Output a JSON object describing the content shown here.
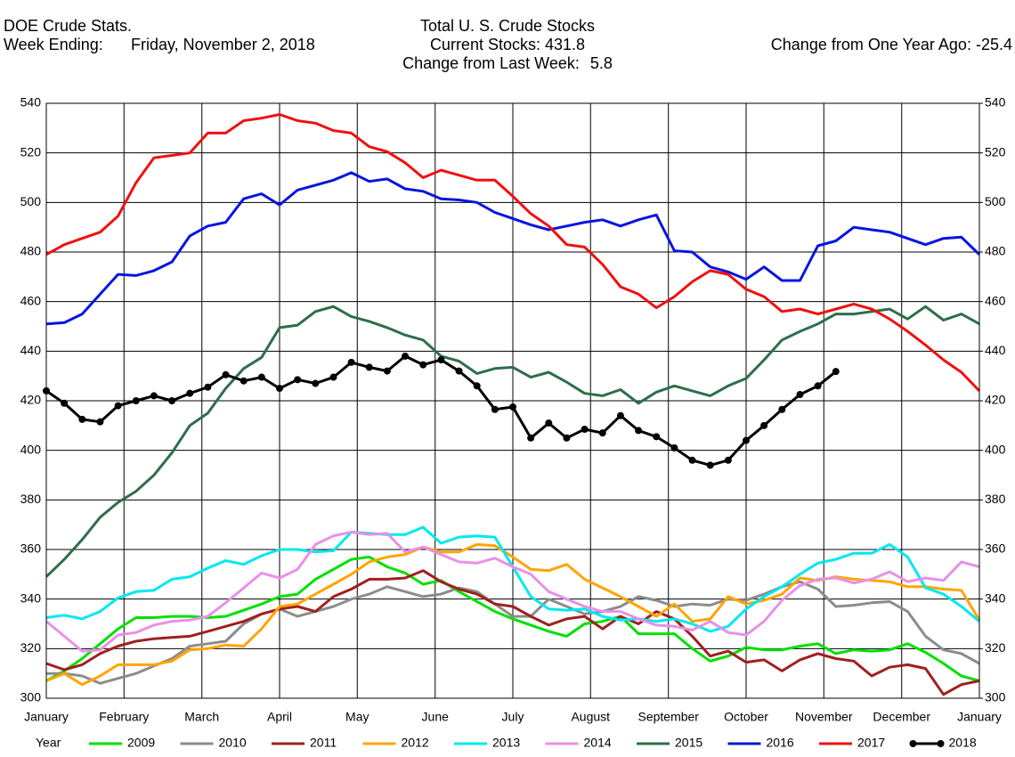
{
  "header": {
    "left_title": "DOE Crude Stats.",
    "week_label": "Week Ending:",
    "week_date": "Friday, November 2, 2018",
    "center_title": "Total U. S. Crude Stocks",
    "current": {
      "label": "Current Stocks:",
      "value": 431.8
    },
    "weekly_change": {
      "label": "Change from Last Week:",
      "value": 5.8
    },
    "yearly_change": {
      "label": "Change from One Year Ago:",
      "value": -25.4
    }
  },
  "chart_data": {
    "type": "line",
    "legend_title": "Year",
    "legend": "bottom",
    "grid": true,
    "x": [
      0,
      1,
      2,
      3,
      4,
      5,
      6,
      7,
      8,
      9,
      10,
      11,
      12,
      13,
      14,
      15,
      16,
      17,
      18,
      19,
      20,
      21,
      22,
      23,
      24,
      25,
      26,
      27,
      28,
      29,
      30,
      31,
      32,
      33,
      34,
      35,
      36,
      37,
      38,
      39,
      40,
      41,
      42,
      43,
      44,
      45,
      46,
      47,
      48,
      49,
      50,
      51,
      52
    ],
    "xlim": [
      0,
      52
    ],
    "xticks": [
      {
        "value": 0,
        "label": "January"
      },
      {
        "value": 4.33,
        "label": "February"
      },
      {
        "value": 8.67,
        "label": "March"
      },
      {
        "value": 13,
        "label": "April"
      },
      {
        "value": 17.33,
        "label": "May"
      },
      {
        "value": 21.67,
        "label": "June"
      },
      {
        "value": 26,
        "label": "July"
      },
      {
        "value": 30.33,
        "label": "August"
      },
      {
        "value": 34.67,
        "label": "September"
      },
      {
        "value": 39,
        "label": "October"
      },
      {
        "value": 43.33,
        "label": "November"
      },
      {
        "value": 47.67,
        "label": "December"
      },
      {
        "value": 52,
        "label": "January"
      }
    ],
    "ylim": [
      300,
      540
    ],
    "yticks": [
      300,
      320,
      340,
      360,
      380,
      400,
      420,
      440,
      460,
      480,
      500,
      520,
      540
    ],
    "y2lim": [
      300,
      540
    ],
    "y2ticks": [
      300,
      320,
      340,
      360,
      380,
      400,
      420,
      440,
      460,
      480,
      500,
      520,
      540
    ],
    "series": [
      {
        "name": "2009",
        "color": "#00e000",
        "values": [
          307,
          311,
          316,
          322,
          328,
          332.5,
          332.5,
          333,
          333,
          332.5,
          333,
          335.5,
          338,
          341,
          342,
          348,
          352,
          356,
          357,
          353,
          350.5,
          346,
          347.5,
          343,
          339,
          335,
          332,
          329.5,
          327,
          325,
          330,
          331,
          333,
          326,
          326,
          326,
          320,
          315,
          317,
          320.5,
          319.5,
          319.5,
          321,
          322,
          318,
          319.5,
          319,
          319.5,
          322,
          318.5,
          314,
          309,
          307
        ]
      },
      {
        "name": "2010",
        "color": "#8c8c8c",
        "values": [
          310,
          310,
          309,
          306,
          308,
          310,
          313,
          316,
          321,
          322,
          323,
          330,
          334,
          336,
          333,
          335,
          337,
          340,
          342,
          345,
          343,
          341,
          342,
          344.5,
          343,
          338,
          333,
          333,
          340,
          337,
          334,
          335,
          337,
          341,
          339.5,
          337,
          338,
          337.5,
          340,
          339.5,
          342,
          345,
          347,
          344,
          337,
          337.5,
          338.5,
          339,
          335,
          325,
          319.5,
          318,
          314
        ]
      },
      {
        "name": "2011",
        "color": "#a02020",
        "values": [
          314,
          311.5,
          313.5,
          318,
          321,
          323,
          324,
          324.5,
          325,
          327,
          329,
          331,
          334,
          336,
          337,
          335,
          341,
          344,
          348,
          348,
          348.5,
          351.5,
          347,
          344,
          342,
          338,
          337,
          333,
          329.5,
          332,
          333,
          328,
          333,
          330,
          335,
          332,
          325,
          317,
          319,
          314.5,
          315.5,
          311,
          315.5,
          318,
          316,
          315,
          309,
          312.5,
          313.5,
          312,
          301.5,
          305.5,
          307
        ]
      },
      {
        "name": "2012",
        "color": "#ffa500",
        "values": [
          307,
          310,
          305.5,
          309,
          313.5,
          313.5,
          313.5,
          315,
          319.5,
          320,
          321.5,
          321,
          328,
          337,
          338,
          342,
          346,
          350,
          355,
          357,
          358,
          361,
          359,
          359,
          362,
          361.5,
          357,
          352,
          351.5,
          354,
          348,
          344.5,
          341,
          337,
          333,
          338,
          331,
          332,
          341,
          338,
          339.5,
          342,
          348.5,
          347.5,
          349,
          348,
          347.5,
          347,
          345,
          345,
          344,
          343.5,
          331.5
        ]
      },
      {
        "name": "2013",
        "color": "#00e8f0",
        "values": [
          332.5,
          333.5,
          332,
          335,
          340.5,
          343,
          343.5,
          348,
          349,
          352.5,
          355.5,
          354,
          357.5,
          360,
          360,
          359,
          359.5,
          367,
          366.5,
          366,
          366,
          369,
          362.5,
          365,
          365.5,
          365,
          353,
          341,
          336,
          335.5,
          336,
          333,
          331.5,
          332,
          331,
          332,
          330,
          327,
          329,
          336,
          341,
          345,
          350,
          354.5,
          356,
          358.5,
          358.5,
          362,
          357,
          344.5,
          342,
          337,
          331
        ]
      },
      {
        "name": "2014",
        "color": "#e890e8",
        "values": [
          331,
          325,
          319,
          319.5,
          325.5,
          326.5,
          329.5,
          331,
          331.5,
          333,
          338.5,
          344.5,
          350.5,
          348.5,
          352,
          362,
          365.5,
          367,
          366,
          366.5,
          359,
          361,
          358,
          355,
          354.5,
          356.5,
          353,
          350,
          343,
          340,
          337,
          335,
          335,
          332,
          329.5,
          329,
          327.5,
          331,
          326.5,
          325.5,
          331,
          339.5,
          345.5,
          348,
          348.5,
          346.5,
          348,
          351,
          347,
          348.5,
          347.5,
          355,
          353
        ]
      },
      {
        "name": "2015",
        "color": "#2e6e4a",
        "values": [
          349,
          356,
          364,
          373,
          379,
          383.5,
          390,
          399,
          410,
          415,
          425,
          433,
          437.5,
          449.5,
          450.5,
          456,
          458,
          454,
          452,
          449.5,
          446.5,
          444.5,
          438,
          436,
          431,
          433,
          433.5,
          429.5,
          431.5,
          427.5,
          423,
          422,
          424.5,
          419,
          423.5,
          426,
          424,
          422,
          426,
          429,
          436.5,
          444.5,
          448,
          451,
          455,
          455,
          456,
          457,
          453,
          458,
          452.5,
          455,
          451
        ]
      },
      {
        "name": "2016",
        "color": "#0a14e0",
        "values": [
          451,
          451.5,
          455,
          463,
          471,
          470.5,
          472.5,
          476,
          486.5,
          490.5,
          492,
          501.5,
          503.5,
          499,
          505,
          507,
          509,
          512,
          508.5,
          509.5,
          505.5,
          504.5,
          501.5,
          501,
          500,
          496,
          493.5,
          491,
          489,
          490.5,
          492,
          493,
          490.5,
          493,
          495,
          480.5,
          480,
          474,
          472,
          469,
          474,
          468.5,
          468.5,
          482.5,
          484.5,
          490,
          489,
          488,
          485.5,
          483,
          485.5,
          486,
          479
        ]
      },
      {
        "name": "2017",
        "color": "#f01010",
        "values": [
          479,
          483,
          485.5,
          488,
          494.5,
          508,
          518,
          519,
          520,
          528,
          528,
          533,
          534,
          535.5,
          533,
          532,
          529,
          528,
          522.5,
          520.5,
          516,
          510,
          513,
          511,
          509,
          509,
          502.5,
          495.5,
          490.5,
          483,
          482,
          475,
          466,
          463,
          457.5,
          462,
          468,
          472.5,
          471,
          465,
          462,
          456,
          457,
          455,
          457,
          459,
          457,
          453,
          448,
          442.5,
          436.5,
          431.5,
          424
        ]
      },
      {
        "name": "2018",
        "color": "#000000",
        "marker": true,
        "values": [
          424,
          419,
          412.5,
          411.5,
          418,
          420,
          422,
          420,
          423,
          425.5,
          430.5,
          428,
          429.5,
          425,
          428.5,
          427,
          429.5,
          435.5,
          433.5,
          432,
          438,
          434.5,
          436.5,
          432,
          426,
          416.5,
          417.5,
          405,
          411,
          405,
          408.5,
          407,
          414,
          408,
          405.5,
          401,
          396,
          394,
          396,
          404,
          410,
          416.5,
          422.5,
          426,
          431.8,
          null,
          null,
          null,
          null,
          null,
          null,
          null,
          null
        ]
      }
    ]
  }
}
